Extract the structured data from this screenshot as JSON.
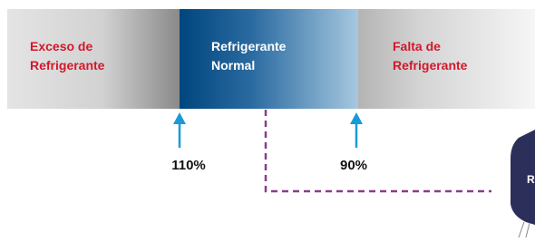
{
  "zones": [
    {
      "lines": [
        "Exceso de",
        "Refrigerante"
      ]
    },
    {
      "lines": [
        "Refrigerante",
        "Normal"
      ]
    },
    {
      "lines": [
        "Falta de",
        "Refrigerante"
      ]
    }
  ],
  "markers": [
    {
      "label": "110%"
    },
    {
      "label": "90%"
    }
  ],
  "device": {
    "label": "R"
  }
}
